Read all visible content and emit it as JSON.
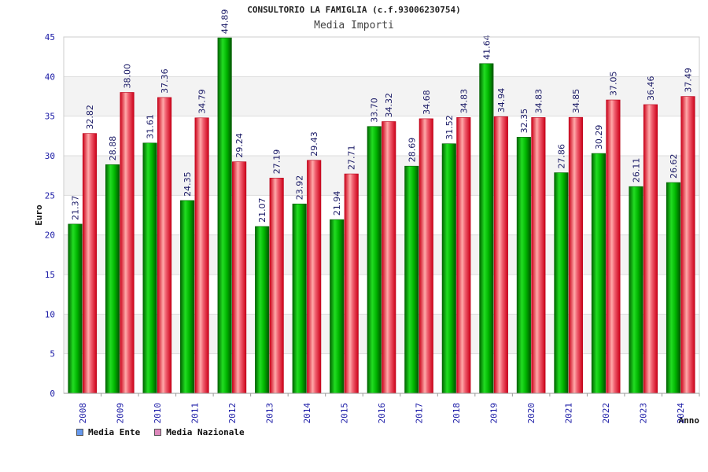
{
  "chart_data": {
    "type": "bar",
    "title": "CONSULTORIO LA FAMIGLIA (c.f.93006230754)",
    "subtitle": "Media Importi",
    "xlabel": "Anno",
    "ylabel": "Euro",
    "ylim": [
      0,
      45
    ],
    "yticks": [
      0,
      5,
      10,
      15,
      20,
      25,
      30,
      35,
      40,
      45
    ],
    "grid": true,
    "legend_position": "bottom-left",
    "categories": [
      "2008",
      "2009",
      "2010",
      "2011",
      "2012",
      "2013",
      "2014",
      "2015",
      "2016",
      "2017",
      "2018",
      "2019",
      "2020",
      "2021",
      "2022",
      "2023",
      "2024"
    ],
    "series": [
      {
        "name": "Media Ente",
        "color": "#00a000",
        "legend_color": "#6699ee",
        "values": [
          21.37,
          28.88,
          31.61,
          24.35,
          44.89,
          21.07,
          23.92,
          21.94,
          33.7,
          28.69,
          31.52,
          41.64,
          32.35,
          27.86,
          30.29,
          26.11,
          26.62
        ],
        "labels": [
          "21.37",
          "28.88",
          "31.61",
          "24.35",
          "44.89",
          "21.07",
          "23.92",
          "21.94",
          "33.70",
          "28.69",
          "31.52",
          "41.64",
          "32.35",
          "27.86",
          "30.29",
          "26.11",
          "26.62"
        ]
      },
      {
        "name": "Media Nazionale",
        "color": "#e8243a",
        "legend_color": "#dd88bb",
        "values": [
          32.82,
          38.0,
          37.36,
          34.79,
          29.24,
          27.19,
          29.43,
          27.71,
          34.32,
          34.68,
          34.83,
          34.94,
          34.83,
          34.85,
          37.05,
          36.46,
          37.49
        ],
        "labels": [
          "32.82",
          "38.00",
          "37.36",
          "34.79",
          "29.24",
          "27.19",
          "29.43",
          "27.71",
          "34.32",
          "34.68",
          "34.83",
          "34.94",
          "34.83",
          "34.85",
          "37.05",
          "36.46",
          "37.49"
        ]
      }
    ]
  }
}
